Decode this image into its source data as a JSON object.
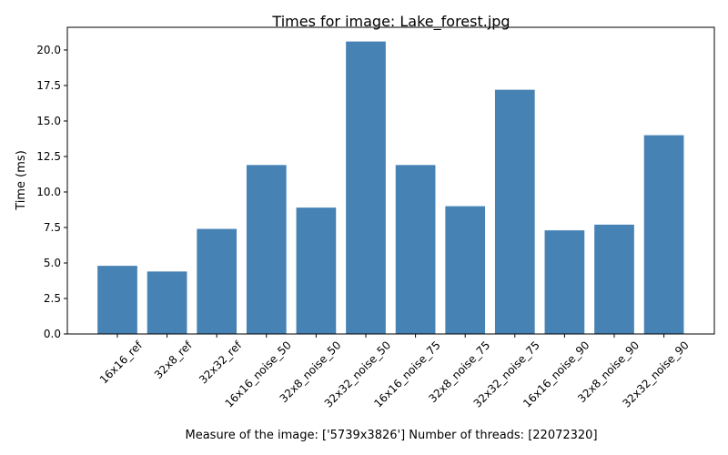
{
  "chart_data": {
    "type": "bar",
    "title": "Times for image: Lake_forest.jpg",
    "xlabel": "Measure of the image: ['5739x3826'] Number of threads: [22072320]",
    "ylabel": "Time (ms)",
    "categories": [
      "16x16_ref",
      "32x8_ref",
      "32x32_ref",
      "16x16_noise_50",
      "32x8_noise_50",
      "32x32_noise_50",
      "16x16_noise_75",
      "32x8_noise_75",
      "32x32_noise_75",
      "16x16_noise_90",
      "32x8_noise_90",
      "32x32_noise_90"
    ],
    "values": [
      4.8,
      4.4,
      7.4,
      11.9,
      8.9,
      20.6,
      11.9,
      9.0,
      17.2,
      7.3,
      7.7,
      14.0
    ],
    "ylim": [
      0,
      21.6
    ],
    "yticks": [
      0.0,
      2.5,
      5.0,
      7.5,
      10.0,
      12.5,
      15.0,
      17.5,
      20.0
    ],
    "ytick_labels": [
      "0.0",
      "2.5",
      "5.0",
      "7.5",
      "10.0",
      "12.5",
      "15.0",
      "17.5",
      "20.0"
    ],
    "bar_color": "#4682b4",
    "grid": false,
    "legend": "none"
  }
}
